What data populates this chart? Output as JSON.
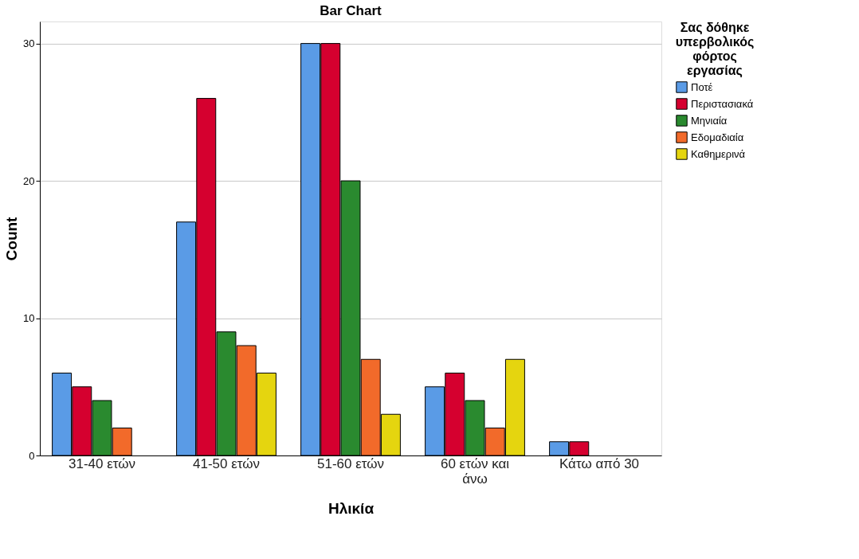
{
  "chart_data": {
    "type": "bar",
    "title": "Bar Chart",
    "xlabel": "Ηλικία",
    "ylabel": "Count",
    "legend_title": "Σας δόθηκε υπερβολικός φόρτος εργασίας",
    "categories": [
      "31-40 ετών",
      "41-50 ετών",
      "51-60 ετών",
      "60 ετών και άνω",
      "Κάτω από 30"
    ],
    "series": [
      {
        "name": "Ποτέ",
        "color": "#5a9be6",
        "values": [
          6,
          17,
          30,
          5,
          1
        ]
      },
      {
        "name": "Περιστασιακά",
        "color": "#d5002f",
        "values": [
          5,
          26,
          30,
          6,
          1
        ]
      },
      {
        "name": "Μηνιαία",
        "color": "#2a8a2f",
        "values": [
          4,
          9,
          20,
          4,
          null
        ]
      },
      {
        "name": "Εδομαδιαία",
        "color": "#f26a2a",
        "values": [
          2,
          8,
          7,
          2,
          null
        ]
      },
      {
        "name": "Καθημερινά",
        "color": "#e5d50f",
        "values": [
          null,
          6,
          3,
          7,
          null
        ]
      }
    ],
    "ylim": [
      0,
      31.6
    ],
    "yticks": [
      0,
      10,
      20,
      30
    ],
    "grid": "y",
    "legend": "top right"
  }
}
